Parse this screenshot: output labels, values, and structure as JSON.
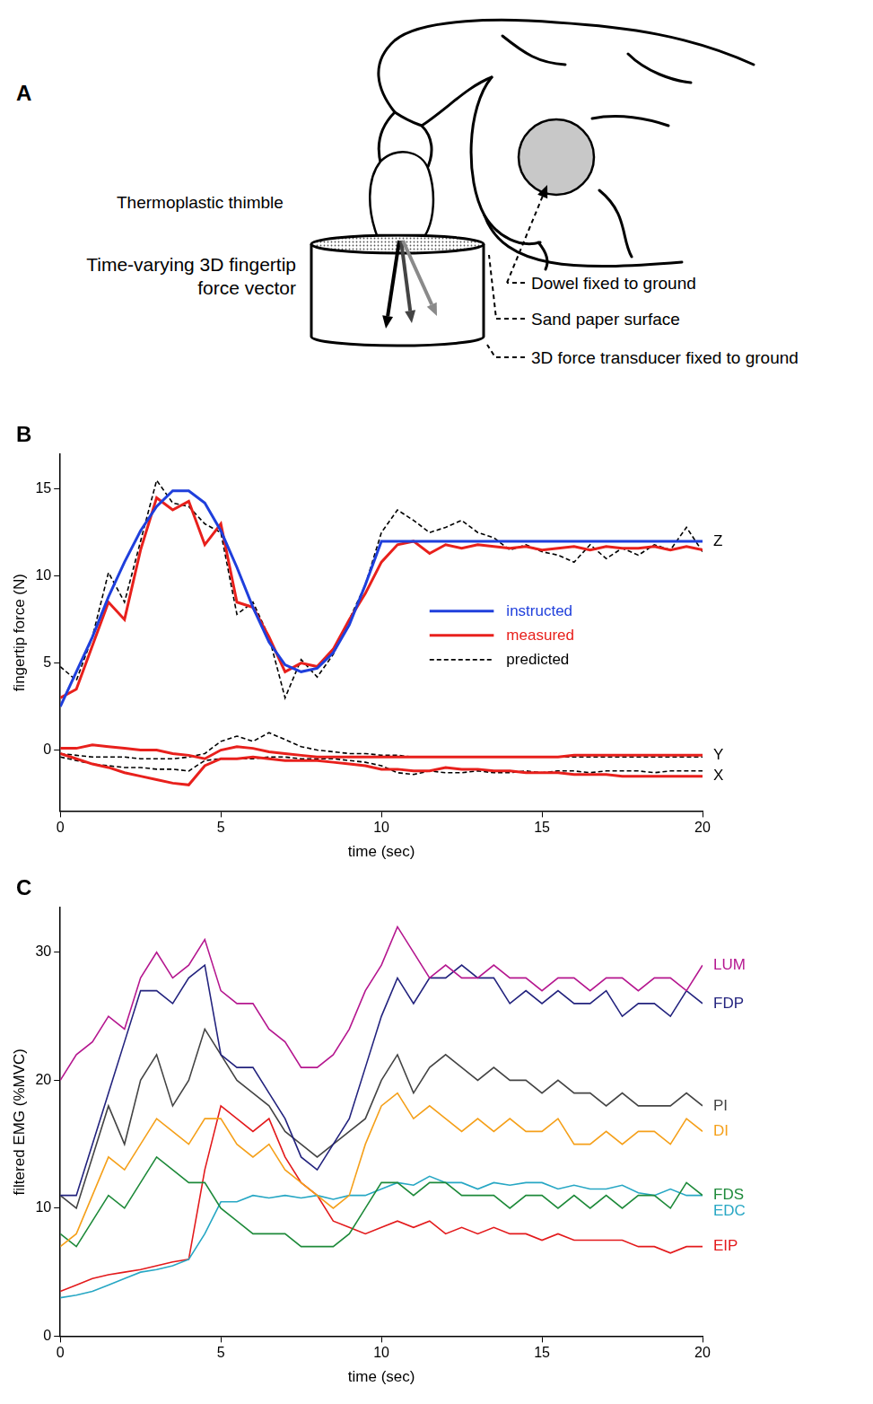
{
  "diagram": {
    "letter": "A",
    "thimble_label": "Thermoplastic thimble",
    "force_vector_label": [
      "Time-varying 3D fingertip",
      "force vector"
    ],
    "callouts": [
      "Dowel fixed to ground",
      "Sand paper surface",
      "3D force transducer fixed to ground"
    ]
  },
  "chart_data": [
    {
      "letter": "B",
      "type": "line",
      "xlabel": "time (sec)",
      "ylabel": "fingertip force (N)",
      "xlim": [
        0,
        20
      ],
      "xticks": [
        0,
        5,
        10,
        15,
        20
      ],
      "ylim": [
        -3.5,
        17
      ],
      "yticks": [
        0,
        5,
        10,
        15
      ],
      "grid": false,
      "legend": "right",
      "x": [
        0,
        0.5,
        1,
        1.5,
        2,
        2.5,
        3,
        3.5,
        4,
        4.5,
        5,
        5.5,
        6,
        6.5,
        7,
        7.5,
        8,
        8.5,
        9,
        9.5,
        10,
        10.5,
        11,
        11.5,
        12,
        12.5,
        13,
        13.5,
        14,
        14.5,
        15,
        15.5,
        16,
        16.5,
        17,
        17.5,
        18,
        18.5,
        19,
        19.5,
        20
      ],
      "series": [
        {
          "name": "instructed",
          "component": "Z",
          "color": "#1f3fdc",
          "line_style": "solid",
          "values": [
            2.5,
            4.5,
            6.5,
            8.8,
            10.8,
            12.6,
            14,
            14.9,
            14.9,
            14.2,
            12.6,
            10.5,
            8.2,
            6.2,
            4.9,
            4.5,
            4.7,
            5.6,
            7.2,
            9.5,
            12,
            12,
            12,
            12,
            12,
            12,
            12,
            12,
            12,
            12,
            12,
            12,
            12,
            12,
            12,
            12,
            12,
            12,
            12,
            12,
            12
          ]
        },
        {
          "name": "measured",
          "component": "Z",
          "color": "#e8201c",
          "line_style": "solid",
          "values": [
            3.0,
            3.5,
            6.0,
            8.5,
            7.5,
            11.5,
            14.5,
            13.8,
            14.3,
            11.8,
            13.0,
            8.5,
            8.2,
            6.5,
            4.5,
            5.0,
            4.8,
            5.8,
            7.5,
            9.0,
            10.8,
            11.8,
            12.0,
            11.3,
            11.8,
            11.6,
            11.8,
            11.7,
            11.6,
            11.7,
            11.5,
            11.6,
            11.7,
            11.5,
            11.7,
            11.6,
            11.6,
            11.7,
            11.5,
            11.7,
            11.5
          ]
        },
        {
          "name": "measured",
          "component": "Y",
          "color": "#e8201c",
          "line_style": "solid",
          "values": [
            0.1,
            0.1,
            0.3,
            0.2,
            0.1,
            0.0,
            0.0,
            -0.2,
            -0.3,
            -0.5,
            0.0,
            0.2,
            0.1,
            -0.1,
            -0.2,
            -0.3,
            -0.4,
            -0.4,
            -0.4,
            -0.4,
            -0.4,
            -0.4,
            -0.4,
            -0.4,
            -0.4,
            -0.4,
            -0.4,
            -0.4,
            -0.4,
            -0.4,
            -0.4,
            -0.4,
            -0.3,
            -0.3,
            -0.3,
            -0.3,
            -0.3,
            -0.3,
            -0.3,
            -0.3,
            -0.3
          ]
        },
        {
          "name": "measured",
          "component": "X",
          "color": "#e8201c",
          "line_style": "solid",
          "values": [
            -0.2,
            -0.5,
            -0.8,
            -1.0,
            -1.3,
            -1.5,
            -1.7,
            -1.9,
            -2.0,
            -0.9,
            -0.5,
            -0.5,
            -0.4,
            -0.5,
            -0.6,
            -0.6,
            -0.6,
            -0.7,
            -0.8,
            -0.9,
            -1.1,
            -1.1,
            -1.2,
            -1.2,
            -1.0,
            -1.1,
            -1.1,
            -1.2,
            -1.2,
            -1.3,
            -1.3,
            -1.3,
            -1.4,
            -1.4,
            -1.4,
            -1.5,
            -1.5,
            -1.5,
            -1.5,
            -1.5,
            -1.5
          ]
        },
        {
          "name": "predicted",
          "component": "Z",
          "color": "#000000",
          "line_style": "dashed",
          "values": [
            4.8,
            4.0,
            6.5,
            10.2,
            8.5,
            12.0,
            15.5,
            14.2,
            14.0,
            13.0,
            12.5,
            7.8,
            8.5,
            6.5,
            3.0,
            5.2,
            4.2,
            5.5,
            7.5,
            9.5,
            12.5,
            13.8,
            13.2,
            12.5,
            12.8,
            13.2,
            12.5,
            12.2,
            11.5,
            11.8,
            11.4,
            11.2,
            10.8,
            11.8,
            11.0,
            11.6,
            11.2,
            11.8,
            11.5,
            12.8,
            11.4
          ]
        },
        {
          "name": "predicted",
          "component": "Y",
          "color": "#000000",
          "line_style": "dashed",
          "values": [
            -0.2,
            -0.3,
            -0.4,
            -0.4,
            -0.4,
            -0.5,
            -0.5,
            -0.5,
            -0.4,
            -0.2,
            0.5,
            0.8,
            0.5,
            1.0,
            0.6,
            0.2,
            0.0,
            -0.1,
            -0.2,
            -0.2,
            -0.3,
            -0.3,
            -0.4,
            -0.4,
            -0.4,
            -0.4,
            -0.4,
            -0.4,
            -0.4,
            -0.4,
            -0.4,
            -0.4,
            -0.4,
            -0.4,
            -0.4,
            -0.4,
            -0.4,
            -0.4,
            -0.4,
            -0.4,
            -0.4
          ]
        },
        {
          "name": "predicted",
          "component": "X",
          "color": "#000000",
          "line_style": "dashed",
          "values": [
            -0.4,
            -0.6,
            -0.8,
            -0.9,
            -1.0,
            -1.0,
            -1.1,
            -1.1,
            -1.2,
            -0.6,
            -0.5,
            -0.5,
            -0.5,
            -0.4,
            -0.4,
            -0.5,
            -0.5,
            -0.5,
            -0.6,
            -0.7,
            -0.9,
            -1.3,
            -1.4,
            -1.2,
            -1.3,
            -1.3,
            -1.2,
            -1.3,
            -1.3,
            -1.2,
            -1.3,
            -1.2,
            -1.2,
            -1.3,
            -1.2,
            -1.2,
            -1.2,
            -1.3,
            -1.2,
            -1.2,
            -1.2
          ]
        }
      ]
    },
    {
      "letter": "C",
      "type": "line",
      "xlabel": "time (sec)",
      "ylabel": "filtered EMG (%MVC)",
      "xlim": [
        0,
        20
      ],
      "xticks": [
        0,
        5,
        10,
        15,
        20
      ],
      "ylim": [
        0,
        33.5
      ],
      "yticks": [
        0,
        10,
        20,
        30
      ],
      "grid": false,
      "x": [
        0,
        0.5,
        1,
        1.5,
        2,
        2.5,
        3,
        3.5,
        4,
        4.5,
        5,
        5.5,
        6,
        6.5,
        7,
        7.5,
        8,
        8.5,
        9,
        9.5,
        10,
        10.5,
        11,
        11.5,
        12,
        12.5,
        13,
        13.5,
        14,
        14.5,
        15,
        15.5,
        16,
        16.5,
        17,
        17.5,
        18,
        18.5,
        19,
        19.5,
        20
      ],
      "series": [
        {
          "name": "LUM",
          "color": "#b5178f",
          "values": [
            20,
            22,
            23,
            25,
            24,
            28,
            30,
            28,
            29,
            31,
            27,
            26,
            26,
            24,
            23,
            21,
            21,
            22,
            24,
            27,
            29,
            32,
            30,
            28,
            29,
            28,
            28,
            29,
            28,
            28,
            27,
            28,
            28,
            27,
            28,
            28,
            27,
            28,
            28,
            27,
            29
          ]
        },
        {
          "name": "FDP",
          "color": "#23237e",
          "values": [
            11,
            11,
            15,
            19,
            23,
            27,
            27,
            26,
            28,
            29,
            22,
            21,
            21,
            19,
            17,
            14,
            13,
            15,
            17,
            21,
            25,
            28,
            26,
            28,
            28,
            29,
            28,
            28,
            26,
            27,
            26,
            27,
            26,
            26,
            27,
            25,
            26,
            26,
            25,
            27,
            26
          ]
        },
        {
          "name": "PI",
          "color": "#444444",
          "values": [
            11,
            10,
            14,
            18,
            15,
            20,
            22,
            18,
            20,
            24,
            22,
            20,
            19,
            18,
            16,
            15,
            14,
            15,
            16,
            17,
            20,
            22,
            19,
            21,
            22,
            21,
            20,
            21,
            20,
            20,
            19,
            20,
            19,
            19,
            18,
            19,
            18,
            18,
            18,
            19,
            18
          ]
        },
        {
          "name": "DI",
          "color": "#f5a01a",
          "values": [
            7,
            8,
            11,
            14,
            13,
            15,
            17,
            16,
            15,
            17,
            17,
            15,
            14,
            15,
            13,
            12,
            11,
            10,
            11,
            15,
            18,
            19,
            17,
            18,
            17,
            16,
            17,
            16,
            17,
            16,
            16,
            17,
            15,
            15,
            16,
            15,
            16,
            16,
            15,
            17,
            16
          ]
        },
        {
          "name": "FDS",
          "color": "#1e8a3a",
          "values": [
            8,
            7,
            9,
            11,
            10,
            12,
            14,
            13,
            12,
            12,
            10,
            9,
            8,
            8,
            8,
            7,
            7,
            7,
            8,
            10,
            12,
            12,
            11,
            12,
            12,
            11,
            11,
            11,
            10,
            11,
            11,
            10,
            11,
            10,
            11,
            10,
            11,
            11,
            10,
            12,
            11
          ]
        },
        {
          "name": "EDC",
          "color": "#27a7c4",
          "values": [
            3,
            3.2,
            3.5,
            4,
            4.5,
            5,
            5.2,
            5.5,
            6,
            8,
            10.5,
            10.5,
            11,
            10.8,
            11,
            10.8,
            11,
            10.7,
            11,
            11,
            11.5,
            12,
            11.8,
            12.5,
            12,
            12,
            11.5,
            12,
            11.8,
            12,
            12,
            11.5,
            11.8,
            11.5,
            11.5,
            11.8,
            11.2,
            11,
            11.5,
            11,
            11
          ]
        },
        {
          "name": "EIP",
          "color": "#e31a1c",
          "values": [
            3.5,
            4,
            4.5,
            4.8,
            5,
            5.2,
            5.5,
            5.8,
            6,
            13,
            18,
            17,
            16,
            17,
            14,
            12,
            11,
            9,
            8.5,
            8,
            8.5,
            9,
            8.5,
            9,
            8,
            8.5,
            8,
            8.5,
            8,
            8,
            7.5,
            8,
            7.5,
            7.5,
            7.5,
            7.5,
            7,
            7,
            6.5,
            7,
            7
          ]
        }
      ]
    }
  ]
}
